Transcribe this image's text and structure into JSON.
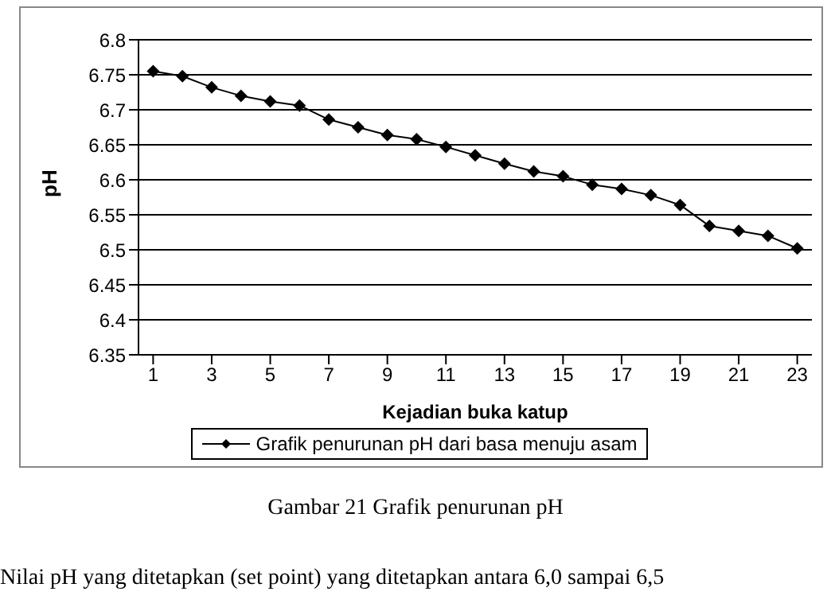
{
  "chart_data": {
    "type": "line",
    "xlabel": "Kejadian buka katup",
    "ylabel": "pH",
    "x": [
      1,
      2,
      3,
      4,
      5,
      6,
      7,
      8,
      9,
      10,
      11,
      12,
      13,
      14,
      15,
      16,
      17,
      18,
      19,
      20,
      21,
      22,
      23
    ],
    "xlim": [
      0.5,
      23.5
    ],
    "xticks": [
      1,
      3,
      5,
      7,
      9,
      11,
      13,
      15,
      17,
      19,
      21,
      23
    ],
    "series": [
      {
        "name": "Grafik penurunan pH dari basa menuju asam",
        "color": "#000000",
        "values": [
          6.755,
          6.748,
          6.732,
          6.72,
          6.712,
          6.706,
          6.686,
          6.675,
          6.664,
          6.658,
          6.647,
          6.635,
          6.623,
          6.612,
          6.605,
          6.593,
          6.587,
          6.578,
          6.564,
          6.534,
          6.527,
          6.52,
          6.502
        ]
      }
    ],
    "ylim": [
      6.35,
      6.8
    ],
    "yticks": [
      6.35,
      6.4,
      6.45,
      6.5,
      6.55,
      6.6,
      6.65,
      6.7,
      6.75,
      6.8
    ],
    "grid": "y",
    "legend": "bottom",
    "marker": "diamond",
    "line_style": "solid",
    "annotations": [
      "Gambar 21 Grafik penurunan pH",
      "Nilai pH yang ditetapkan (set point) yang ditetapkan antara 6,0 sampai 6,5"
    ]
  }
}
